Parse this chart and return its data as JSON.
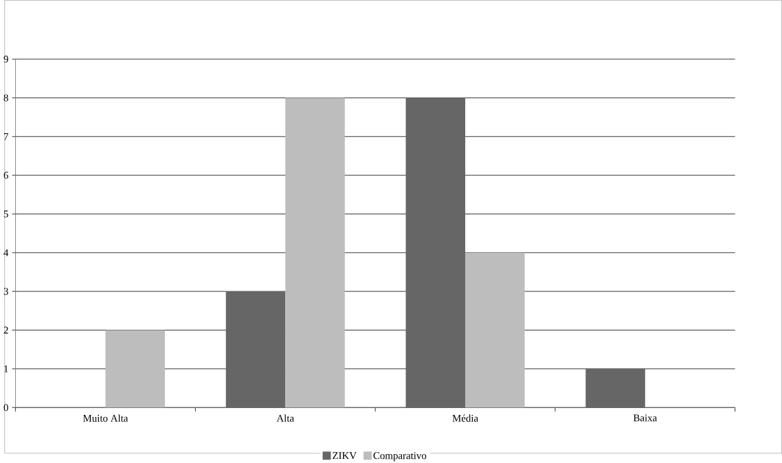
{
  "chart_data": {
    "type": "bar",
    "categories": [
      "Muito Alta",
      "Alta",
      "Média",
      "Baixa"
    ],
    "series": [
      {
        "name": "ZIKV",
        "color": "#666666",
        "values": [
          0,
          3,
          8,
          1
        ]
      },
      {
        "name": "Comparativo",
        "color": "#bdbdbd",
        "values": [
          2,
          8,
          4,
          0
        ]
      }
    ],
    "ylim": [
      0,
      9
    ],
    "yticks": [
      0,
      1,
      2,
      3,
      4,
      5,
      6,
      7,
      8,
      9
    ],
    "grid": "y",
    "legend": "bottom"
  }
}
